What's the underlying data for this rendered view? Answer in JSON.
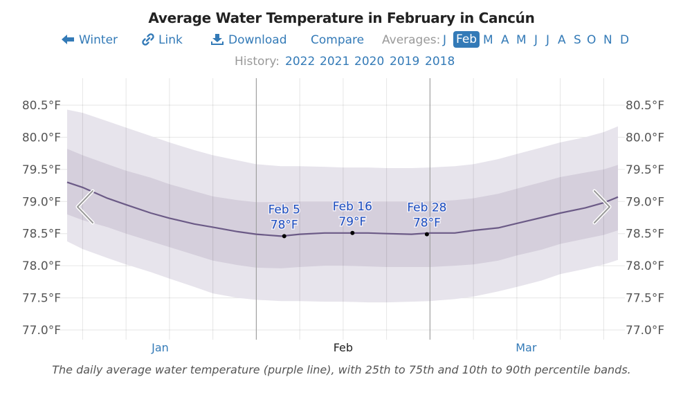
{
  "header": {
    "title": "Average Water Temperature in February in Cancún"
  },
  "toolbar": {
    "winter": {
      "label": "Winter",
      "icon": "arrow-left-icon"
    },
    "link": {
      "label": "Link",
      "icon": "link-icon"
    },
    "download": {
      "label": "Download",
      "icon": "download-icon"
    },
    "compare": {
      "label": "Compare"
    },
    "averages_label": "Averages:",
    "months": [
      "J",
      "Feb",
      "M",
      "A",
      "M",
      "J",
      "J",
      "A",
      "S",
      "O",
      "N",
      "D"
    ],
    "selected_month": "Feb"
  },
  "history": {
    "label": "History:",
    "years": [
      "2022",
      "2021",
      "2020",
      "2019",
      "2018"
    ]
  },
  "caption": "The daily average water temperature (purple line), with 25th to 75th and 10th to 90th percentile bands.",
  "colors": {
    "line": "#6b5a86",
    "band_25_75": "#d5cfdc",
    "band_10_90": "#e7e4ec",
    "link": "#337ab7",
    "annotation": "#1a4dbf"
  },
  "chart_data": {
    "type": "area",
    "title": "Average Water Temperature in February in Cancún",
    "xlabel": "",
    "ylabel": "",
    "x_unit": "day of year (Jan 1 = 0)",
    "xlim": [
      0.5,
      89.3
    ],
    "ylim": [
      76.9,
      80.9
    ],
    "y_ticks": [
      77.0,
      77.5,
      78.0,
      78.5,
      79.0,
      79.5,
      80.0,
      80.5
    ],
    "y_tick_labels": [
      "77.0°F",
      "77.5°F",
      "78.0°F",
      "78.5°F",
      "79.0°F",
      "79.5°F",
      "80.0°F",
      "80.5°F"
    ],
    "x_month_labels": [
      {
        "label": "Jan",
        "day": 15.5,
        "highlight": false
      },
      {
        "label": "Feb",
        "day": 45,
        "highlight": true
      },
      {
        "label": "Mar",
        "day": 74.5,
        "highlight": false
      }
    ],
    "x_gridlines_days": [
      3,
      10,
      17,
      24,
      31,
      38,
      45,
      52,
      59,
      66,
      73,
      80,
      87
    ],
    "x_month_boundaries_days": [
      31,
      59
    ],
    "grid": true,
    "x": [
      0.5,
      3,
      7,
      10,
      14,
      17,
      21,
      24,
      28,
      31,
      35,
      38,
      42,
      45,
      49,
      52,
      56,
      59,
      63,
      66,
      70,
      73,
      77,
      80,
      84,
      87,
      89.3
    ],
    "series": [
      {
        "name": "p90",
        "values": [
          80.43,
          80.38,
          80.25,
          80.15,
          80.02,
          79.92,
          79.8,
          79.72,
          79.64,
          79.58,
          79.55,
          79.55,
          79.54,
          79.53,
          79.53,
          79.52,
          79.52,
          79.53,
          79.55,
          79.58,
          79.66,
          79.74,
          79.84,
          79.92,
          80.0,
          80.08,
          80.17
        ]
      },
      {
        "name": "p75",
        "values": [
          79.82,
          79.72,
          79.58,
          79.48,
          79.37,
          79.27,
          79.16,
          79.08,
          79.02,
          78.99,
          78.99,
          79.0,
          79.0,
          79.0,
          79.0,
          79.0,
          79.0,
          79.0,
          79.02,
          79.05,
          79.12,
          79.2,
          79.3,
          79.38,
          79.45,
          79.5,
          79.57
        ]
      },
      {
        "name": "median",
        "values": [
          79.3,
          79.22,
          79.05,
          78.95,
          78.82,
          78.74,
          78.65,
          78.6,
          78.53,
          78.49,
          78.46,
          78.49,
          78.51,
          78.51,
          78.51,
          78.5,
          78.49,
          78.51,
          78.51,
          78.55,
          78.59,
          78.66,
          78.75,
          78.82,
          78.9,
          78.98,
          79.07
        ]
      },
      {
        "name": "p25",
        "values": [
          78.8,
          78.71,
          78.6,
          78.5,
          78.38,
          78.29,
          78.17,
          78.08,
          78.01,
          77.97,
          77.96,
          77.98,
          78.0,
          78.0,
          77.99,
          77.98,
          77.98,
          77.98,
          78.0,
          78.02,
          78.08,
          78.16,
          78.25,
          78.34,
          78.42,
          78.48,
          78.55
        ]
      },
      {
        "name": "p10",
        "values": [
          78.38,
          78.26,
          78.12,
          78.02,
          77.9,
          77.8,
          77.67,
          77.57,
          77.5,
          77.47,
          77.45,
          77.45,
          77.44,
          77.44,
          77.43,
          77.43,
          77.44,
          77.45,
          77.48,
          77.52,
          77.6,
          77.67,
          77.77,
          77.87,
          77.95,
          78.02,
          78.09
        ]
      }
    ],
    "annotations": [
      {
        "date": "Feb 5",
        "value_label": "78°F",
        "day": 35.5,
        "value": 78.46
      },
      {
        "date": "Feb 16",
        "value_label": "79°F",
        "day": 46.5,
        "value": 78.51
      },
      {
        "date": "Feb 28",
        "value_label": "78°F",
        "day": 58.5,
        "value": 78.49
      }
    ],
    "nav": {
      "prev": "chevron-left-icon",
      "next": "chevron-right-icon"
    }
  }
}
